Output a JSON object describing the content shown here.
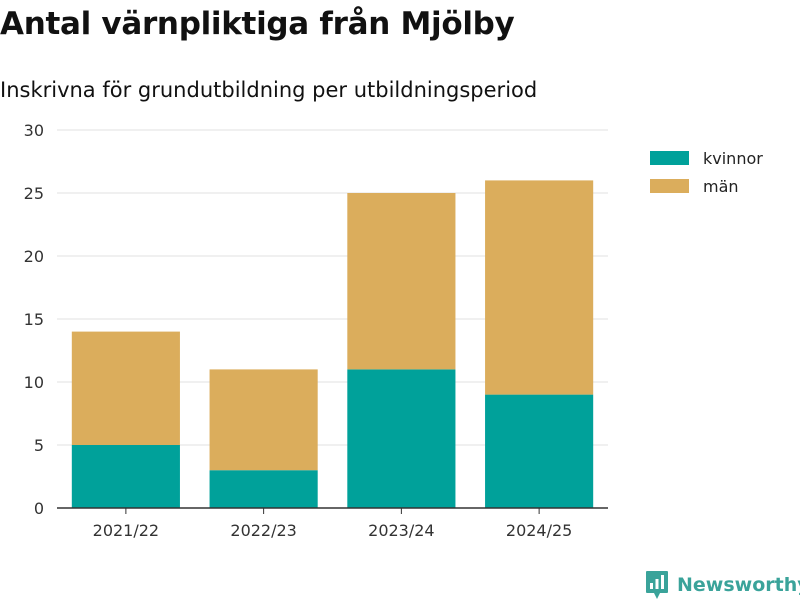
{
  "chart_data": {
    "type": "bar",
    "stacked": true,
    "title": "Antal värnpliktiga från Mjölby",
    "subtitle": "Inskrivna för grundutbildning per utbildningsperiod",
    "xlabel": "",
    "ylabel": "",
    "categories": [
      "2021/22",
      "2022/23",
      "2023/24",
      "2024/25"
    ],
    "series": [
      {
        "name": "kvinnor",
        "color": "#00a19a",
        "values": [
          5,
          3,
          11,
          9
        ]
      },
      {
        "name": "män",
        "color": "#dbad5c",
        "values": [
          9,
          8,
          14,
          17
        ]
      }
    ],
    "ylim": [
      0,
      30
    ],
    "yticks": [
      0,
      5,
      10,
      15,
      20,
      25,
      30
    ],
    "grid": true,
    "legend_position": "top-right"
  },
  "brand": {
    "name": "Newsworthy",
    "icon": "newsworthy-logo-icon",
    "color": "#3aa39a"
  }
}
